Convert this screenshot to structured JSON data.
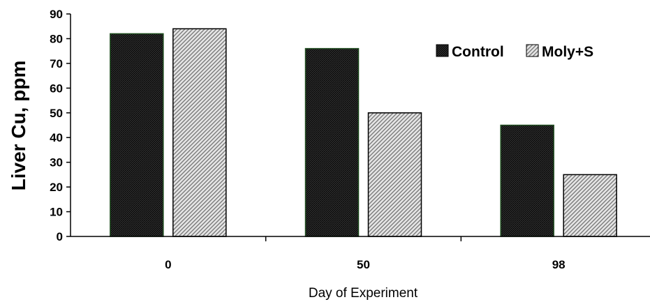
{
  "chart_data": {
    "type": "bar",
    "categories": [
      "0",
      "50",
      "98"
    ],
    "series": [
      {
        "name": "Control",
        "values": [
          82,
          76,
          45
        ],
        "fill": "#1a1a1a",
        "stroke": "#1f4d1f",
        "pattern": "dark-crosshatch"
      },
      {
        "name": "Moly+S",
        "values": [
          84,
          50,
          25
        ],
        "fill": "#d9d9d9",
        "stroke": "#000000",
        "pattern": "light-diagonal-hatch"
      }
    ],
    "title": "",
    "xlabel": "Day of Experiment",
    "ylabel": "Liver Cu, ppm",
    "ylim": [
      0,
      90
    ],
    "yticks": [
      "0",
      "10",
      "20",
      "30",
      "40",
      "50",
      "60",
      "70",
      "80",
      "90"
    ],
    "grid": false,
    "legend_position": "top-right"
  }
}
